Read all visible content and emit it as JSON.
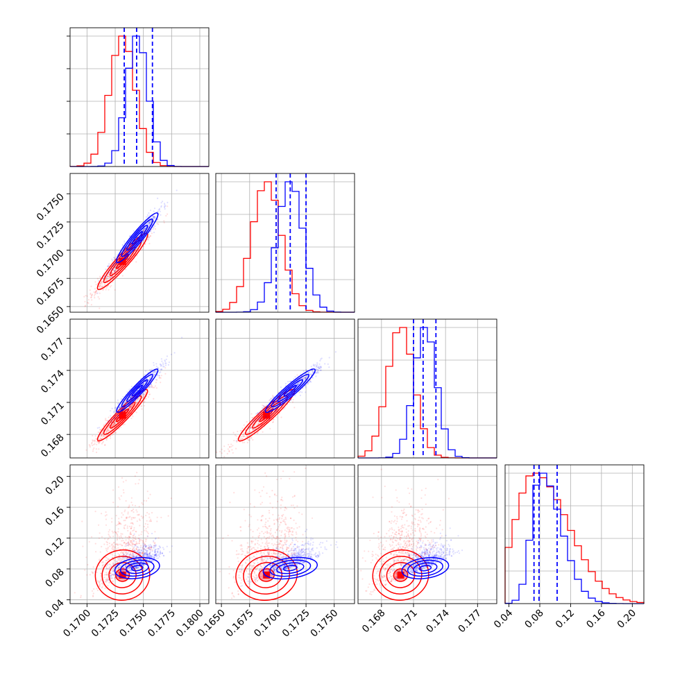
{
  "chart_data": {
    "type": "corner",
    "grid": true,
    "colors": {
      "blue": "#0000ff",
      "red": "#ff0000",
      "quantile": "#0000ff"
    },
    "parameters": [
      {
        "range": [
          0.1685,
          0.1808
        ],
        "ticks": [
          0.17,
          0.1725,
          0.175,
          0.1775,
          0.18
        ],
        "tick_labels": [
          "0.1700",
          "0.1725",
          "0.1750",
          "0.1775",
          "0.1800"
        ],
        "blue_mean": 0.17445,
        "blue_sd": 0.00095,
        "red_mean": 0.17315,
        "red_sd": 0.00115,
        "blue_quantiles": [
          0.1733,
          0.1744,
          0.1758
        ]
      },
      {
        "range": [
          0.1645,
          0.1768
        ],
        "ticks": [
          0.165,
          0.1675,
          0.17,
          0.1725,
          0.175
        ],
        "tick_labels": [
          "0.1650",
          "0.1675",
          "0.1700",
          "0.1725",
          "0.1750"
        ],
        "blue_mean": 0.1711,
        "blue_sd": 0.00115,
        "red_mean": 0.169,
        "red_sd": 0.0013,
        "blue_quantiles": [
          0.16985,
          0.1711,
          0.1725
        ]
      },
      {
        "range": [
          0.1658,
          0.1788
        ],
        "ticks": [
          0.168,
          0.171,
          0.174,
          0.177
        ],
        "tick_labels": [
          "0.168",
          "0.171",
          "0.174",
          "0.177"
        ],
        "blue_mean": 0.1721,
        "blue_sd": 0.00105,
        "red_mean": 0.1698,
        "red_sd": 0.00125,
        "blue_quantiles": [
          0.171,
          0.1719,
          0.1731
        ]
      },
      {
        "range": [
          0.035,
          0.215
        ],
        "ticks": [
          0.04,
          0.08,
          0.12,
          0.16,
          0.2
        ],
        "tick_labels": [
          "0.04",
          "0.08",
          "0.12",
          "0.16",
          "0.20"
        ],
        "blue_mean": 0.081,
        "blue_sd": 0.012,
        "red_mean": 0.072,
        "red_sd": 0.025,
        "blue_quantiles": [
          0.0725,
          0.079,
          0.1025
        ]
      }
    ],
    "diag_yticks_fraction": [
      0.25,
      0.5,
      0.75,
      1.0
    ],
    "contour_levels": [
      0.5,
      1.0,
      1.5,
      2.0
    ],
    "bins": 20
  }
}
